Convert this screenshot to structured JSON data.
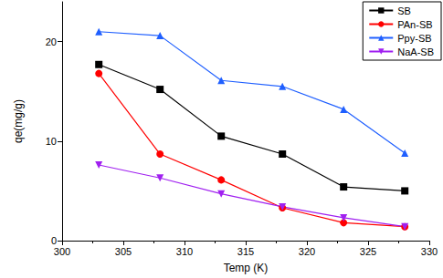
{
  "chart_data": {
    "type": "line",
    "x_label": "Temp (K)",
    "y_label": "qe(mg/g)",
    "x": [
      303,
      308,
      313,
      318,
      323,
      328
    ],
    "series": [
      {
        "name": "SB",
        "color": "#000000",
        "marker": "square",
        "values": [
          17.7,
          15.2,
          10.5,
          8.7,
          5.4,
          5.0
        ]
      },
      {
        "name": "PAn-SB",
        "color": "#ff0000",
        "marker": "circle",
        "values": [
          16.8,
          8.7,
          6.1,
          3.3,
          1.8,
          1.4
        ]
      },
      {
        "name": "Ppy-SB",
        "color": "#1f5fff",
        "marker": "triangle",
        "values": [
          21.0,
          20.6,
          16.1,
          15.5,
          13.2,
          8.8
        ]
      },
      {
        "name": "NaA-SB",
        "color": "#a020f0",
        "marker": "triangle_down",
        "values": [
          7.6,
          6.3,
          4.7,
          3.4,
          2.3,
          1.4
        ]
      }
    ],
    "xlim": [
      300,
      330
    ],
    "xticks": [
      300,
      305,
      310,
      315,
      320,
      325,
      330
    ],
    "ylim": [
      0,
      24
    ],
    "yticks": [
      0,
      10,
      20
    ],
    "grid": false,
    "legend": "upper right"
  }
}
